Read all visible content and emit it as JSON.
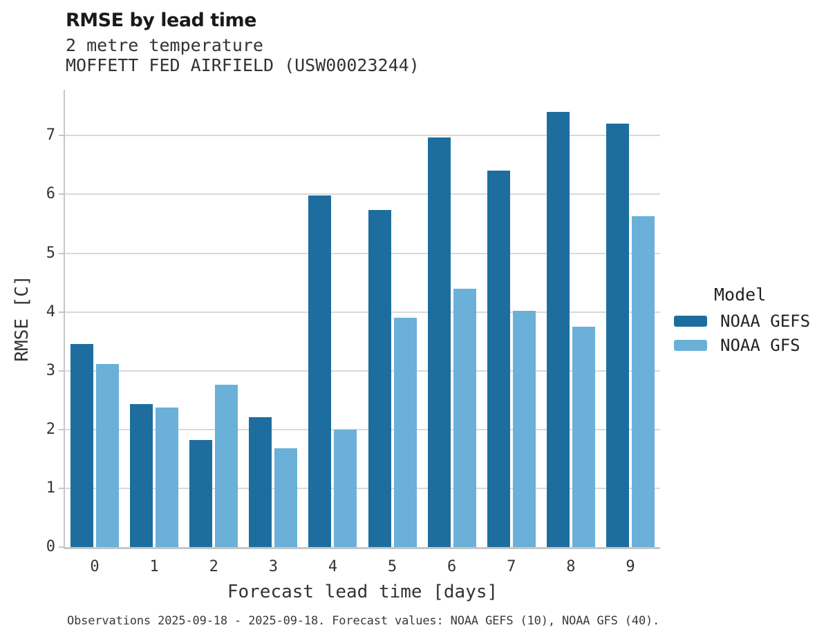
{
  "header": {
    "title": "RMSE by lead time",
    "subtitle": "2 metre temperature",
    "station": "MOFFETT FED AIRFIELD (USW00023244)"
  },
  "legend": {
    "title": "Model"
  },
  "caption": "Observations 2025-09-18 - 2025-09-18. Forecast values: NOAA GEFS (10), NOAA GFS (40).",
  "colors": {
    "gefs_bar": "#1d6e9f",
    "gfs_bar": "#6bb0d8",
    "gridline": "#d9d9d9",
    "spine": "#c6c6c6"
  },
  "chart_data": {
    "type": "bar",
    "title": "RMSE by lead time",
    "subtitle": "2 metre temperature",
    "station": "MOFFETT FED AIRFIELD (USW00023244)",
    "xlabel": "Forecast lead time [days]",
    "ylabel": "RMSE [C]",
    "categories": [
      "0",
      "1",
      "2",
      "3",
      "4",
      "5",
      "6",
      "7",
      "8",
      "9"
    ],
    "series": [
      {
        "name": "NOAA GEFS",
        "color": "#1d6e9f",
        "values": [
          3.45,
          2.43,
          1.82,
          2.21,
          5.98,
          5.73,
          6.97,
          6.41,
          7.4,
          7.2
        ]
      },
      {
        "name": "NOAA GFS",
        "color": "#6bb0d8",
        "values": [
          3.11,
          2.37,
          2.76,
          1.68,
          2.0,
          3.9,
          4.39,
          4.02,
          3.75,
          5.63
        ]
      }
    ],
    "ylim": [
      0,
      7.78
    ],
    "yticks": [
      0,
      1,
      2,
      3,
      4,
      5,
      6,
      7
    ],
    "grid": true,
    "legend_title": "Model",
    "legend_position": "right"
  }
}
